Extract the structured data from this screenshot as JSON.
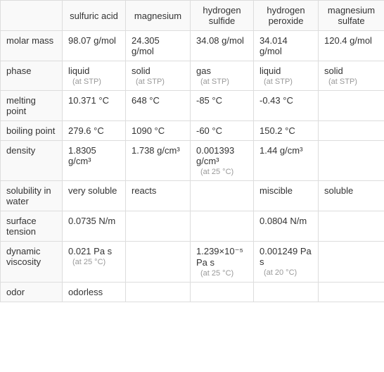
{
  "columns": [
    "",
    "sulfuric acid",
    "magnesium",
    "hydrogen sulfide",
    "hydrogen peroxide",
    "magnesium sulfate"
  ],
  "rows": [
    {
      "label": "molar mass",
      "cells": [
        {
          "main": "98.07 g/mol"
        },
        {
          "main": "24.305 g/mol"
        },
        {
          "main": "34.08 g/mol"
        },
        {
          "main": "34.014 g/mol"
        },
        {
          "main": "120.4 g/mol"
        }
      ]
    },
    {
      "label": "phase",
      "cells": [
        {
          "main": "liquid",
          "note": "(at STP)"
        },
        {
          "main": "solid",
          "note": "(at STP)"
        },
        {
          "main": "gas",
          "note": "(at STP)"
        },
        {
          "main": "liquid",
          "note": "(at STP)"
        },
        {
          "main": "solid",
          "note": "(at STP)"
        }
      ]
    },
    {
      "label": "melting point",
      "cells": [
        {
          "main": "10.371 °C"
        },
        {
          "main": "648 °C"
        },
        {
          "main": "-85 °C"
        },
        {
          "main": "-0.43 °C"
        },
        {
          "main": ""
        }
      ]
    },
    {
      "label": "boiling point",
      "cells": [
        {
          "main": "279.6 °C"
        },
        {
          "main": "1090 °C"
        },
        {
          "main": "-60 °C"
        },
        {
          "main": "150.2 °C"
        },
        {
          "main": ""
        }
      ]
    },
    {
      "label": "density",
      "cells": [
        {
          "main": "1.8305 g/cm³"
        },
        {
          "main": "1.738 g/cm³"
        },
        {
          "main": "0.001393 g/cm³",
          "note": "(at 25 °C)"
        },
        {
          "main": "1.44 g/cm³"
        },
        {
          "main": ""
        }
      ]
    },
    {
      "label": "solubility in water",
      "cells": [
        {
          "main": "very soluble"
        },
        {
          "main": "reacts"
        },
        {
          "main": ""
        },
        {
          "main": "miscible"
        },
        {
          "main": "soluble"
        }
      ]
    },
    {
      "label": "surface tension",
      "cells": [
        {
          "main": "0.0735 N/m"
        },
        {
          "main": ""
        },
        {
          "main": ""
        },
        {
          "main": "0.0804 N/m"
        },
        {
          "main": ""
        }
      ]
    },
    {
      "label": "dynamic viscosity",
      "cells": [
        {
          "main": "0.021 Pa s",
          "note": "(at 25 °C)"
        },
        {
          "main": ""
        },
        {
          "main": "1.239×10⁻⁵ Pa s",
          "note": "(at 25 °C)"
        },
        {
          "main": "0.001249 Pa s",
          "note": "(at 20 °C)"
        },
        {
          "main": ""
        }
      ]
    },
    {
      "label": "odor",
      "cells": [
        {
          "main": "odorless"
        },
        {
          "main": ""
        },
        {
          "main": ""
        },
        {
          "main": ""
        },
        {
          "main": ""
        }
      ]
    }
  ],
  "styling": {
    "border_color": "#dddddd",
    "header_bg": "#f9f9f9",
    "text_color": "#333333",
    "note_color": "#999999",
    "font_size_main": 13,
    "font_size_note": 11,
    "background_color": "#ffffff"
  }
}
